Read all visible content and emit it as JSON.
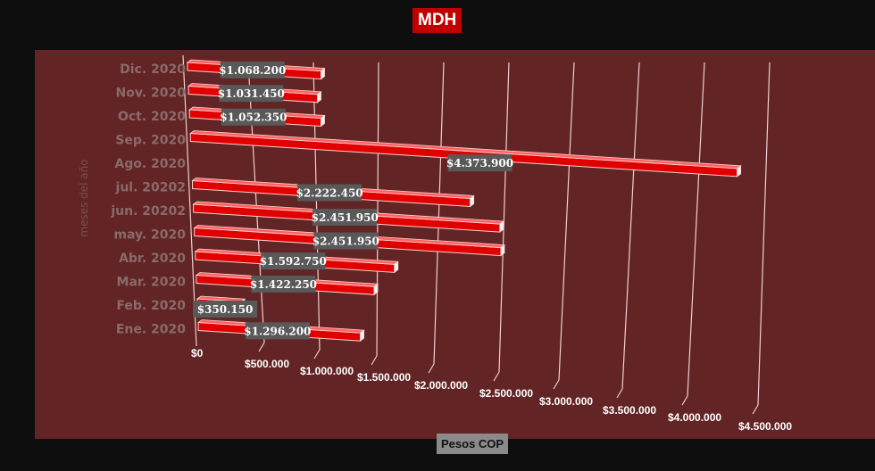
{
  "chart_data": {
    "type": "bar",
    "orientation": "horizontal-3d",
    "title": "MDH",
    "xlabel": "Pesos COP",
    "ylabel": "meses del año",
    "categories": [
      "Ene. 2020",
      "Feb. 2020",
      "Mar. 2020",
      "Abr. 2020",
      "may. 2020",
      "jun. 20202",
      "jul. 20202",
      "Ago. 2020",
      "Sep. 2020",
      "Oct. 2020",
      "Nov. 2020",
      "Dic. 2020"
    ],
    "values": [
      1296200,
      350150,
      1422250,
      1592750,
      2451950,
      2451950,
      2222450,
      null,
      4373900,
      1052350,
      1031450,
      1068200
    ],
    "data_labels": [
      "$1.296.200",
      "$350.150",
      "$1.422.250",
      "$1.592.750",
      "$2.451.950",
      "$2.451.950",
      "$2.222.450",
      "",
      "$4.373.900",
      "$1.052.350",
      "$1.031.450",
      "$1.068.200"
    ],
    "xticks": [
      "$0",
      "$500.000",
      "$1.000.000",
      "$1.500.000",
      "$2.000.000",
      "$2.500.000",
      "$3.000.000",
      "$3.500.000",
      "$4.000.000",
      "$4.500.000"
    ],
    "xlim": [
      0,
      4500000
    ],
    "grid": true,
    "colors": {
      "bar": "#e00000",
      "plot_bg": "#622424",
      "page_bg": "#0e0e0e",
      "label_bg": "#595959"
    }
  }
}
